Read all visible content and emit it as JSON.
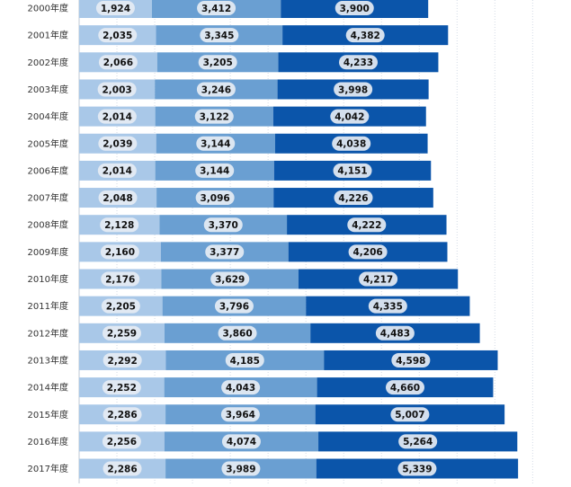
{
  "chart_data": {
    "type": "bar",
    "orientation": "horizontal",
    "stacked": true,
    "grid": true,
    "colors": [
      "#a9c8e8",
      "#6a9fd2",
      "#0b55aa"
    ],
    "label_bubble_color": "#e6ebf3",
    "categories": [
      "2000年度",
      "2001年度",
      "2002年度",
      "2003年度",
      "2004年度",
      "2005年度",
      "2006年度",
      "2007年度",
      "2008年度",
      "2009年度",
      "2010年度",
      "2011年度",
      "2012年度",
      "2013年度",
      "2014年度",
      "2015年度",
      "2016年度",
      "2017年度"
    ],
    "series": [
      {
        "values": [
          1924,
          2035,
          2066,
          2003,
          2014,
          2039,
          2014,
          2048,
          2128,
          2160,
          2176,
          2205,
          2259,
          2292,
          2252,
          2286,
          2256,
          2286
        ]
      },
      {
        "values": [
          3412,
          3345,
          3205,
          3246,
          3122,
          3144,
          3144,
          3096,
          3370,
          3377,
          3629,
          3796,
          3860,
          4185,
          4043,
          3964,
          4074,
          3989
        ]
      },
      {
        "values": [
          3900,
          4382,
          4233,
          3998,
          4042,
          4038,
          4151,
          4226,
          4222,
          4206,
          4217,
          4335,
          4483,
          4598,
          4660,
          5007,
          5264,
          5339
        ]
      }
    ]
  }
}
